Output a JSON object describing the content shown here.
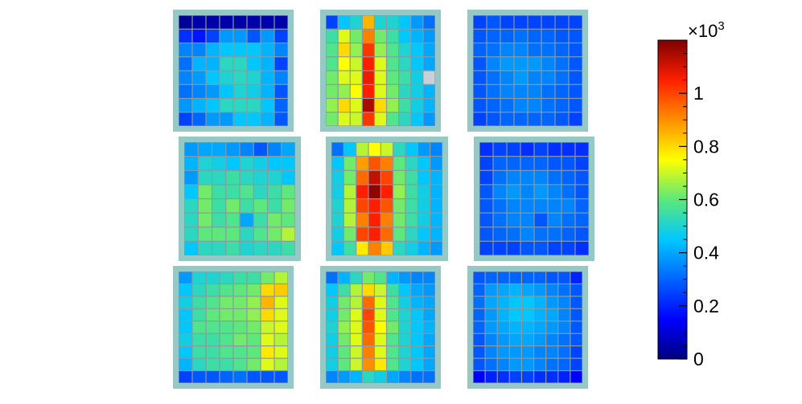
{
  "chart_data": {
    "type": "heatmap",
    "title": "",
    "colormap": "jet",
    "panel_frame_color": "#95c9c5",
    "cell_border_color": "#8a9aa0",
    "missing_cell_color": "#c8d2d6",
    "colorbar": {
      "min": 0,
      "max": 1.2,
      "multiplier": "×10",
      "exponent": "3",
      "ticks": [
        {
          "value": 0,
          "label": "0"
        },
        {
          "value": 0.2,
          "label": "0.2"
        },
        {
          "value": 0.4,
          "label": "0.4"
        },
        {
          "value": 0.6,
          "label": "0.6"
        },
        {
          "value": 0.8,
          "label": "0.8"
        },
        {
          "value": 1.0,
          "label": "1"
        }
      ]
    },
    "panels": [
      {
        "name": "top-left",
        "values": [
          [
            0.03,
            0.05,
            0.05,
            0.05,
            0.05,
            0.05,
            0.05,
            0.05
          ],
          [
            0.22,
            0.18,
            0.25,
            0.38,
            0.38,
            0.28,
            0.38,
            0.25
          ],
          [
            0.35,
            0.35,
            0.42,
            0.45,
            0.45,
            0.45,
            0.42,
            0.35
          ],
          [
            0.32,
            0.42,
            0.42,
            0.52,
            0.52,
            0.45,
            0.42,
            0.25
          ],
          [
            0.35,
            0.38,
            0.45,
            0.5,
            0.52,
            0.5,
            0.42,
            0.35
          ],
          [
            0.32,
            0.35,
            0.38,
            0.45,
            0.5,
            0.48,
            0.42,
            0.28
          ],
          [
            0.38,
            0.42,
            0.45,
            0.52,
            0.52,
            0.52,
            0.45,
            0.3
          ],
          [
            0.25,
            0.3,
            0.38,
            0.38,
            0.45,
            0.45,
            0.42,
            0.28
          ]
        ]
      },
      {
        "name": "top-middle",
        "values": [
          [
            0.25,
            0.45,
            0.5,
            0.85,
            0.5,
            0.5,
            0.45,
            0.38,
            0.32
          ],
          [
            0.55,
            0.72,
            0.62,
            0.92,
            0.62,
            0.55,
            0.45,
            0.42,
            0.38
          ],
          [
            0.58,
            0.8,
            0.65,
            1.02,
            0.65,
            0.58,
            0.5,
            0.45,
            0.4
          ],
          [
            0.58,
            0.75,
            0.7,
            1.05,
            0.72,
            0.58,
            0.52,
            0.45,
            0.4
          ],
          [
            0.62,
            0.72,
            0.72,
            1.07,
            0.72,
            0.6,
            0.55,
            0.48,
            null
          ],
          [
            0.62,
            0.65,
            0.75,
            1.05,
            0.72,
            0.62,
            0.52,
            0.48,
            0.42
          ],
          [
            0.65,
            0.8,
            0.72,
            1.15,
            0.8,
            0.65,
            0.55,
            0.48,
            0.42
          ],
          [
            0.62,
            0.72,
            0.7,
            1.02,
            0.72,
            0.58,
            0.52,
            0.45,
            0.38
          ]
        ]
      },
      {
        "name": "top-right",
        "values": [
          [
            0.25,
            0.28,
            0.25,
            0.25,
            0.25,
            0.25,
            0.25,
            0.25
          ],
          [
            0.28,
            0.3,
            0.3,
            0.32,
            0.3,
            0.3,
            0.28,
            0.28
          ],
          [
            0.3,
            0.32,
            0.35,
            0.35,
            0.32,
            0.32,
            0.3,
            0.28
          ],
          [
            0.28,
            0.35,
            0.38,
            0.38,
            0.38,
            0.35,
            0.32,
            0.28
          ],
          [
            0.28,
            0.32,
            0.35,
            0.38,
            0.35,
            0.35,
            0.32,
            0.28
          ],
          [
            0.28,
            0.32,
            0.35,
            0.35,
            0.35,
            0.32,
            0.3,
            0.28
          ],
          [
            0.28,
            0.3,
            0.32,
            0.35,
            0.35,
            0.32,
            0.3,
            0.28
          ],
          [
            0.25,
            0.28,
            0.3,
            0.3,
            0.3,
            0.3,
            0.28,
            0.25
          ]
        ]
      },
      {
        "name": "middle-left",
        "values": [
          [
            0.38,
            0.4,
            0.4,
            0.38,
            0.35,
            0.28,
            0.35,
            0.4
          ],
          [
            0.42,
            0.5,
            0.48,
            0.45,
            0.5,
            0.48,
            0.45,
            0.45
          ],
          [
            0.38,
            0.52,
            0.52,
            0.55,
            0.52,
            0.5,
            0.5,
            0.45
          ],
          [
            0.45,
            0.62,
            0.55,
            0.55,
            0.58,
            0.52,
            0.55,
            0.6
          ],
          [
            0.52,
            0.62,
            0.55,
            0.62,
            0.55,
            0.6,
            0.55,
            0.62
          ],
          [
            0.52,
            0.62,
            0.55,
            0.58,
            0.4,
            0.55,
            0.62,
            0.6
          ],
          [
            0.52,
            0.6,
            0.6,
            0.6,
            0.52,
            0.58,
            0.62,
            0.68
          ],
          [
            0.45,
            0.52,
            0.52,
            0.55,
            0.5,
            0.52,
            0.52,
            0.55
          ]
        ]
      },
      {
        "name": "center",
        "values": [
          [
            0.32,
            0.45,
            0.68,
            0.75,
            0.7,
            0.52,
            0.45,
            0.38,
            0.35
          ],
          [
            0.45,
            0.62,
            0.88,
            0.98,
            0.92,
            0.6,
            0.52,
            0.45,
            0.38
          ],
          [
            0.48,
            0.62,
            0.95,
            1.12,
            1.0,
            0.62,
            0.55,
            0.45,
            0.42
          ],
          [
            0.48,
            0.68,
            1.05,
            1.18,
            1.05,
            0.65,
            0.55,
            0.48,
            0.42
          ],
          [
            0.5,
            0.68,
            1.0,
            1.05,
            0.98,
            0.62,
            0.55,
            0.48,
            0.42
          ],
          [
            0.5,
            0.68,
            0.92,
            1.05,
            0.92,
            0.62,
            0.55,
            0.48,
            0.42
          ],
          [
            0.48,
            0.62,
            1.0,
            1.05,
            0.95,
            0.6,
            0.52,
            0.45,
            0.42
          ],
          [
            0.45,
            0.55,
            0.78,
            0.92,
            0.82,
            0.52,
            0.48,
            0.42,
            0.38
          ]
        ]
      },
      {
        "name": "middle-right",
        "values": [
          [
            0.22,
            0.25,
            0.25,
            0.22,
            0.25,
            0.22,
            0.22,
            0.22
          ],
          [
            0.25,
            0.3,
            0.3,
            0.3,
            0.3,
            0.28,
            0.28,
            0.25
          ],
          [
            0.25,
            0.32,
            0.35,
            0.35,
            0.35,
            0.32,
            0.3,
            0.28
          ],
          [
            0.28,
            0.35,
            0.38,
            0.35,
            0.38,
            0.35,
            0.32,
            0.28
          ],
          [
            0.28,
            0.32,
            0.35,
            0.35,
            0.35,
            0.35,
            0.35,
            0.3
          ],
          [
            0.28,
            0.32,
            0.35,
            0.35,
            0.28,
            0.35,
            0.32,
            0.3
          ],
          [
            0.28,
            0.3,
            0.32,
            0.35,
            0.32,
            0.32,
            0.3,
            0.28
          ],
          [
            0.25,
            0.25,
            0.25,
            0.28,
            0.28,
            0.25,
            0.25,
            0.22
          ]
        ]
      },
      {
        "name": "bottom-left",
        "values": [
          [
            0.38,
            0.5,
            0.5,
            0.52,
            0.55,
            0.55,
            0.62,
            0.68
          ],
          [
            0.45,
            0.52,
            0.55,
            0.58,
            0.6,
            0.62,
            0.8,
            0.82
          ],
          [
            0.48,
            0.55,
            0.58,
            0.62,
            0.62,
            0.65,
            0.85,
            0.72
          ],
          [
            0.45,
            0.55,
            0.6,
            0.62,
            0.62,
            0.65,
            0.8,
            0.72
          ],
          [
            0.45,
            0.58,
            0.58,
            0.58,
            0.6,
            0.62,
            0.7,
            0.72
          ],
          [
            0.48,
            0.55,
            0.55,
            0.58,
            0.62,
            0.6,
            0.72,
            0.68
          ],
          [
            0.45,
            0.55,
            0.55,
            0.58,
            0.58,
            0.6,
            0.78,
            0.72
          ],
          [
            0.42,
            0.52,
            0.55,
            0.55,
            0.58,
            0.62,
            0.72,
            0.68
          ],
          [
            0.25,
            0.28,
            0.28,
            0.3,
            0.32,
            0.28,
            0.28,
            0.28
          ]
        ]
      },
      {
        "name": "bottom-middle",
        "values": [
          [
            0.32,
            0.42,
            0.52,
            0.62,
            0.58,
            0.42,
            0.38,
            0.35,
            0.35
          ],
          [
            0.45,
            0.55,
            0.68,
            0.8,
            0.7,
            0.55,
            0.45,
            0.4,
            0.38
          ],
          [
            0.48,
            0.62,
            0.68,
            0.95,
            0.72,
            0.58,
            0.48,
            0.42,
            0.4
          ],
          [
            0.48,
            0.62,
            0.72,
            1.0,
            0.72,
            0.58,
            0.5,
            0.45,
            0.4
          ],
          [
            0.5,
            0.65,
            0.72,
            0.98,
            0.75,
            0.62,
            0.5,
            0.45,
            0.42
          ],
          [
            0.48,
            0.62,
            0.72,
            0.95,
            0.72,
            0.58,
            0.5,
            0.45,
            0.4
          ],
          [
            0.48,
            0.6,
            0.7,
            0.92,
            0.72,
            0.58,
            0.5,
            0.45,
            0.4
          ],
          [
            0.48,
            0.6,
            0.7,
            0.9,
            0.78,
            0.58,
            0.5,
            0.45,
            0.4
          ],
          [
            0.35,
            0.38,
            0.42,
            0.52,
            0.48,
            0.4,
            0.35,
            0.32,
            0.32
          ]
        ]
      },
      {
        "name": "bottom-right",
        "values": [
          [
            0.28,
            0.3,
            0.3,
            0.3,
            0.3,
            0.3,
            0.28,
            0.28,
            0.2
          ],
          [
            0.3,
            0.38,
            0.4,
            0.42,
            0.4,
            0.38,
            0.35,
            0.32,
            0.28
          ],
          [
            0.32,
            0.4,
            0.42,
            0.45,
            0.45,
            0.42,
            0.38,
            0.35,
            0.28
          ],
          [
            0.3,
            0.38,
            0.42,
            0.45,
            0.45,
            0.42,
            0.4,
            0.35,
            0.28
          ],
          [
            0.3,
            0.38,
            0.4,
            0.42,
            0.42,
            0.4,
            0.38,
            0.35,
            0.28
          ],
          [
            0.28,
            0.35,
            0.38,
            0.4,
            0.4,
            0.38,
            0.35,
            0.32,
            0.28
          ],
          [
            0.28,
            0.35,
            0.38,
            0.38,
            0.38,
            0.35,
            0.35,
            0.32,
            0.25
          ],
          [
            0.28,
            0.32,
            0.35,
            0.38,
            0.38,
            0.35,
            0.32,
            0.3,
            0.25
          ],
          [
            0.15,
            0.2,
            0.22,
            0.25,
            0.25,
            0.22,
            0.22,
            0.2,
            0.15
          ]
        ]
      }
    ]
  }
}
